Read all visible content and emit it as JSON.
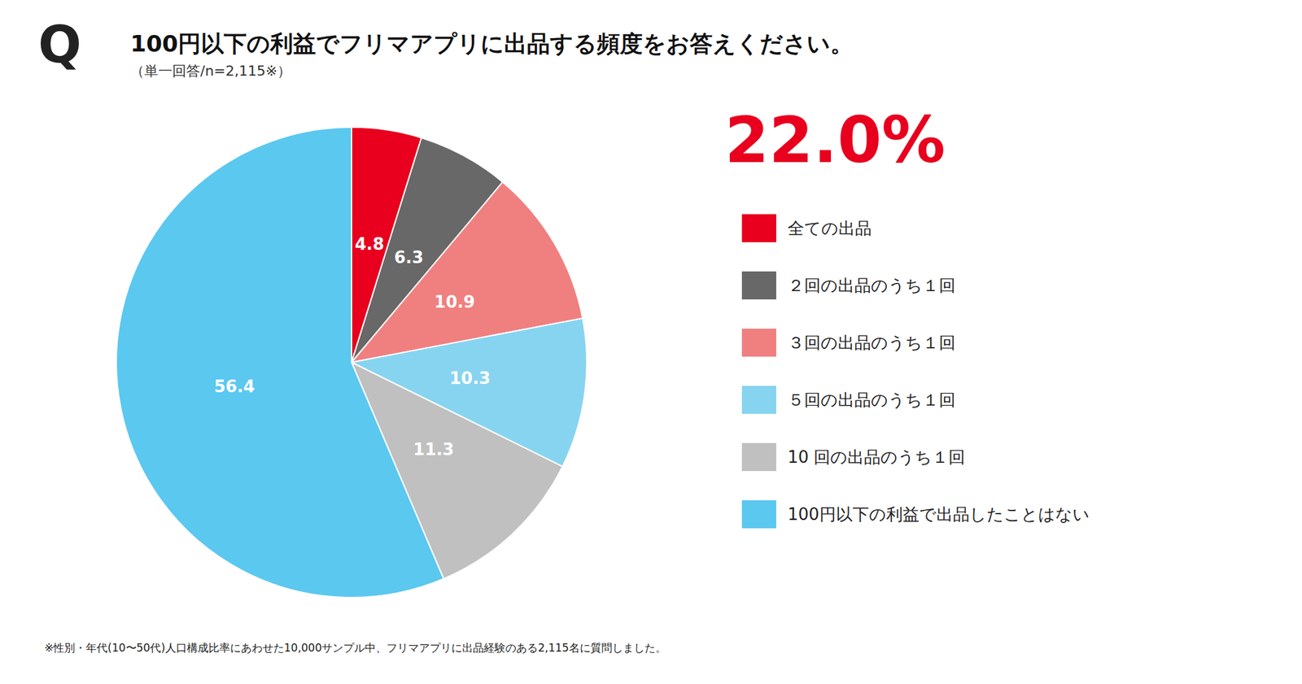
{
  "chart_data": {
    "type": "pie",
    "title": "100円以下の利益でフリマアプリに出品する頻度をお答えください。",
    "subtitle": "（単一回答/n=2,115※）",
    "categories": [
      "全ての出品",
      "２回の出品のうち１回",
      "３回の出品のうち１回",
      "５回の出品のうち１回",
      "10 回の出品のうち１回",
      "100円以下の利益で出品したことはない"
    ],
    "values": [
      4.8,
      6.3,
      10.9,
      10.3,
      11.3,
      56.4
    ],
    "colors": [
      "#e8001e",
      "#686868",
      "#f08080",
      "#87d4f0",
      "#c0c0c0",
      "#5bc8f0"
    ],
    "data_labels": true,
    "legend": "right",
    "annotations": [
      {
        "text": "Q"
      },
      {
        "text": "22.0%",
        "color": "#e8001e"
      },
      {
        "text": "※性別・年代(10〜50代)人口構成比率にあわせた10,000サンプル中、フリマアプリに出品経験のある2,115名に質問しました。"
      }
    ]
  }
}
